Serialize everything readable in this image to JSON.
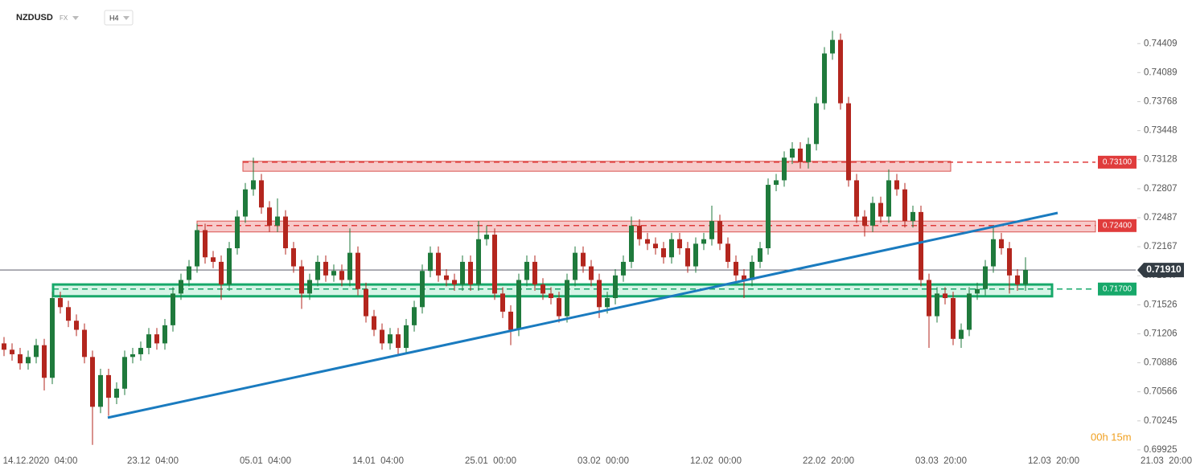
{
  "chart_data": {
    "type": "candlestick",
    "symbol": "NZDUSD",
    "market": "FX",
    "interval": "H4",
    "countdown": "00h 15m",
    "xticks": [
      "14.12.2020  04:00",
      "23.12  04:00",
      "05.01  04:00",
      "14.01  04:00",
      "25.01  00:00",
      "03.02  00:00",
      "12.02  00:00",
      "22.02  20:00",
      "03.03  20:00",
      "12.03  20:00",
      "21.03  20:00"
    ],
    "ylim": [
      0.6988,
      0.7489
    ],
    "yticks": [
      0.74409,
      0.74089,
      0.73768,
      0.73448,
      0.73128,
      0.72807,
      0.72487,
      0.72167,
      0.71847,
      0.71526,
      0.71206,
      0.70886,
      0.70566,
      0.70245,
      0.69925
    ],
    "up_color": "#1f7a3c",
    "down_color": "#b3261e",
    "open": [
      0.711,
      0.7103,
      0.7098,
      0.7088,
      0.7095,
      0.7108,
      0.7072,
      0.716,
      0.715,
      0.7135,
      0.7125,
      0.7095,
      0.704,
      0.7075,
      0.705,
      0.706,
      0.7095,
      0.7098,
      0.7105,
      0.712,
      0.711,
      0.713,
      0.7165,
      0.718,
      0.7195,
      0.7235,
      0.7205,
      0.72,
      0.7175,
      0.7215,
      0.725,
      0.728,
      0.729,
      0.726,
      0.724,
      0.725,
      0.7215,
      0.7195,
      0.7165,
      0.718,
      0.72,
      0.7185,
      0.719,
      0.718,
      0.721,
      0.717,
      0.714,
      0.7125,
      0.711,
      0.712,
      0.7105,
      0.713,
      0.715,
      0.719,
      0.721,
      0.7185,
      0.718,
      0.7175,
      0.72,
      0.7175,
      0.7225,
      0.723,
      0.7165,
      0.7145,
      0.7125,
      0.718,
      0.72,
      0.7175,
      0.7165,
      0.716,
      0.714,
      0.718,
      0.721,
      0.7195,
      0.718,
      0.715,
      0.716,
      0.7185,
      0.72,
      0.724,
      0.7225,
      0.722,
      0.7215,
      0.7205,
      0.7225,
      0.7215,
      0.7195,
      0.722,
      0.7225,
      0.7245,
      0.722,
      0.72,
      0.7185,
      0.718,
      0.72,
      0.7215,
      0.7285,
      0.729,
      0.7315,
      0.7325,
      0.731,
      0.733,
      0.7375,
      0.743,
      0.7445,
      0.7375,
      0.729,
      0.725,
      0.724,
      0.7265,
      0.725,
      0.729,
      0.728,
      0.7245,
      0.7255,
      0.718,
      0.714,
      0.7165,
      0.716,
      0.7115,
      0.7125,
      0.7165,
      0.717,
      0.7195,
      0.7225,
      0.7215,
      0.7185,
      0.7175
    ],
    "high": [
      0.7117,
      0.711,
      0.7105,
      0.7102,
      0.7115,
      0.7115,
      0.7167,
      0.7167,
      0.7157,
      0.7142,
      0.7132,
      0.7102,
      0.7082,
      0.7082,
      0.7067,
      0.7102,
      0.7105,
      0.7112,
      0.7127,
      0.7127,
      0.7137,
      0.7172,
      0.7187,
      0.7202,
      0.7242,
      0.7242,
      0.7212,
      0.7207,
      0.7222,
      0.7257,
      0.7287,
      0.7315,
      0.7297,
      0.7267,
      0.727,
      0.7257,
      0.7222,
      0.7202,
      0.7187,
      0.7207,
      0.7207,
      0.7197,
      0.7197,
      0.7237,
      0.7217,
      0.7177,
      0.7147,
      0.7132,
      0.7127,
      0.7127,
      0.7137,
      0.7157,
      0.7197,
      0.7217,
      0.7217,
      0.7192,
      0.7187,
      0.7207,
      0.7207,
      0.7245,
      0.724,
      0.7237,
      0.7172,
      0.7152,
      0.7187,
      0.7207,
      0.7207,
      0.7182,
      0.7172,
      0.7167,
      0.7187,
      0.7217,
      0.7217,
      0.7202,
      0.7187,
      0.7167,
      0.7192,
      0.7207,
      0.725,
      0.7247,
      0.7232,
      0.7227,
      0.7222,
      0.7232,
      0.7232,
      0.7222,
      0.7227,
      0.7232,
      0.7262,
      0.7252,
      0.7227,
      0.7207,
      0.7192,
      0.7207,
      0.7222,
      0.7292,
      0.7297,
      0.7322,
      0.7332,
      0.7332,
      0.7337,
      0.7382,
      0.7437,
      0.7455,
      0.7452,
      0.7382,
      0.7297,
      0.7257,
      0.7272,
      0.7272,
      0.7302,
      0.7297,
      0.7287,
      0.7262,
      0.7262,
      0.7187,
      0.7172,
      0.7172,
      0.7167,
      0.7132,
      0.7172,
      0.7177,
      0.7202,
      0.724,
      0.7232,
      0.7222,
      0.7192,
      0.7205
    ],
    "low": [
      0.7096,
      0.7091,
      0.7081,
      0.7081,
      0.7088,
      0.7058,
      0.7065,
      0.7143,
      0.7128,
      0.7118,
      0.7088,
      0.6998,
      0.7033,
      0.703,
      0.7043,
      0.7053,
      0.7088,
      0.7091,
      0.7098,
      0.7103,
      0.7103,
      0.7123,
      0.7158,
      0.7173,
      0.7188,
      0.7198,
      0.7193,
      0.7158,
      0.7168,
      0.7208,
      0.7243,
      0.7273,
      0.7253,
      0.7233,
      0.7233,
      0.7208,
      0.7188,
      0.7148,
      0.7158,
      0.7173,
      0.7178,
      0.7178,
      0.7173,
      0.7173,
      0.7163,
      0.7133,
      0.7118,
      0.7103,
      0.7103,
      0.7098,
      0.7098,
      0.7123,
      0.7143,
      0.7183,
      0.7178,
      0.7173,
      0.7168,
      0.7168,
      0.7168,
      0.7168,
      0.7218,
      0.7158,
      0.7138,
      0.7108,
      0.7118,
      0.7173,
      0.7168,
      0.7158,
      0.7153,
      0.7133,
      0.7133,
      0.7173,
      0.7188,
      0.7173,
      0.7138,
      0.7143,
      0.7153,
      0.7178,
      0.7193,
      0.7218,
      0.7213,
      0.7208,
      0.7198,
      0.7198,
      0.7208,
      0.7188,
      0.7188,
      0.7213,
      0.7218,
      0.7213,
      0.7193,
      0.7178,
      0.716,
      0.7173,
      0.7193,
      0.7208,
      0.7278,
      0.7283,
      0.7308,
      0.7303,
      0.7303,
      0.7323,
      0.7368,
      0.7423,
      0.7368,
      0.7283,
      0.7243,
      0.7228,
      0.7233,
      0.7243,
      0.7243,
      0.7273,
      0.7238,
      0.7238,
      0.7173,
      0.7105,
      0.7133,
      0.7153,
      0.7108,
      0.7105,
      0.7118,
      0.7158,
      0.7163,
      0.7188,
      0.7208,
      0.7165,
      0.7168,
      0.7168
    ],
    "close": [
      0.7103,
      0.7098,
      0.7088,
      0.7095,
      0.7108,
      0.7072,
      0.716,
      0.715,
      0.7135,
      0.7125,
      0.7095,
      0.704,
      0.7075,
      0.705,
      0.706,
      0.7095,
      0.7098,
      0.7105,
      0.712,
      0.711,
      0.713,
      0.7165,
      0.718,
      0.7195,
      0.7235,
      0.7205,
      0.72,
      0.7175,
      0.7215,
      0.725,
      0.728,
      0.729,
      0.726,
      0.724,
      0.725,
      0.7215,
      0.7195,
      0.7165,
      0.718,
      0.72,
      0.7185,
      0.719,
      0.718,
      0.721,
      0.717,
      0.714,
      0.7125,
      0.711,
      0.712,
      0.7105,
      0.713,
      0.715,
      0.719,
      0.721,
      0.7185,
      0.718,
      0.7175,
      0.72,
      0.7175,
      0.7225,
      0.723,
      0.7165,
      0.7145,
      0.7125,
      0.718,
      0.72,
      0.7175,
      0.7165,
      0.716,
      0.714,
      0.718,
      0.721,
      0.7195,
      0.718,
      0.715,
      0.716,
      0.7185,
      0.72,
      0.724,
      0.7225,
      0.722,
      0.7215,
      0.7205,
      0.7225,
      0.7215,
      0.7195,
      0.722,
      0.7225,
      0.7245,
      0.722,
      0.72,
      0.7185,
      0.718,
      0.72,
      0.7215,
      0.7285,
      0.729,
      0.7315,
      0.7325,
      0.731,
      0.733,
      0.7375,
      0.743,
      0.7445,
      0.7375,
      0.729,
      0.725,
      0.724,
      0.7265,
      0.725,
      0.729,
      0.728,
      0.7245,
      0.7255,
      0.718,
      0.714,
      0.7165,
      0.716,
      0.7115,
      0.7125,
      0.7165,
      0.717,
      0.7195,
      0.7225,
      0.7215,
      0.7185,
      0.7175,
      0.7191
    ],
    "levels": [
      {
        "value": 0.731,
        "label": "0.73100",
        "color": "#e03c3c",
        "zone": [
          0.73,
          0.7311
        ]
      },
      {
        "value": 0.724,
        "label": "0.72400",
        "color": "#e03c3c",
        "zone": [
          0.7233,
          0.7245
        ]
      },
      {
        "value": 0.717,
        "label": "0.71700",
        "color": "#17a86a",
        "zone": [
          0.7162,
          0.7175
        ]
      }
    ],
    "trendline": {
      "values": [
        0.7028,
        0.7254
      ],
      "color": "#1a7bbf"
    },
    "last": {
      "value": 0.7191,
      "label": "0.71910"
    }
  }
}
